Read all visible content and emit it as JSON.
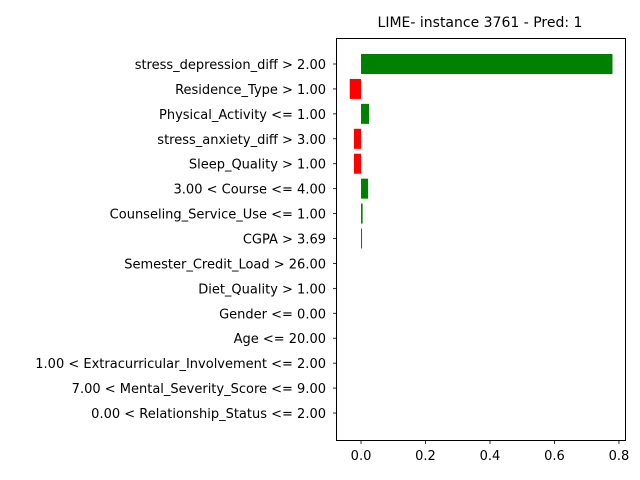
{
  "chart_data": {
    "type": "bar",
    "orientation": "horizontal",
    "title": "LIME- instance 3761 - Pred: 1",
    "xlabel": "",
    "ylabel": "",
    "xlim": [
      -0.0745,
      0.8188
    ],
    "xticks": [
      0.0,
      0.2,
      0.4,
      0.6,
      0.8
    ],
    "xtick_labels": [
      "0.0",
      "0.2",
      "0.4",
      "0.6",
      "0.8"
    ],
    "grid": false,
    "categories": [
      "stress_depression_diff > 2.00",
      "Residence_Type > 1.00",
      "Physical_Activity <= 1.00",
      "stress_anxiety_diff > 3.00",
      "Sleep_Quality > 1.00",
      "3.00 < Course <= 4.00",
      "Counseling_Service_Use <= 1.00",
      "CGPA > 3.69",
      "Semester_Credit_Load > 26.00",
      "Diet_Quality > 1.00",
      "Gender <= 0.00",
      "Age <= 20.00",
      "1.00 < Extracurricular_Involvement <= 2.00",
      "7.00 < Mental_Severity_Score <= 9.00",
      "0.00 < Relationship_Status <= 2.00"
    ],
    "values": [
      0.78,
      -0.035,
      0.025,
      -0.022,
      -0.022,
      0.022,
      0.005,
      0.002,
      0.0,
      0.0,
      0.0,
      0.0,
      0.0,
      0.0,
      0.0
    ],
    "colors": {
      "positive": "#008000",
      "negative": "#ff0000"
    }
  }
}
